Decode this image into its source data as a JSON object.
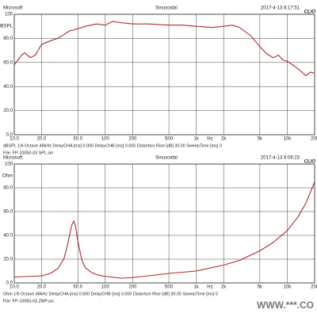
{
  "chart_data": [
    {
      "type": "line",
      "header": {
        "left": "Microsoft",
        "center": "Sinusoidal",
        "right": "2017-4-13 8:17:51",
        "brand": "CLIO"
      },
      "y_unit": "dBSPL",
      "x_unit": "Hz",
      "log_x": true,
      "grid": true,
      "color": "#b3282d",
      "xlim": [
        10,
        20000
      ],
      "xticks": [
        {
          "value": 10,
          "label": "10.0"
        },
        {
          "value": 20,
          "label": "20.0"
        },
        {
          "value": 50,
          "label": "50.0"
        },
        100,
        200,
        500,
        {
          "value": 1000,
          "label": "1k"
        },
        {
          "value": 2000,
          "label": "2k"
        },
        {
          "value": 5000,
          "label": "5k"
        },
        {
          "value": 10000,
          "label": "10k"
        },
        {
          "value": 20000,
          "label": "20k"
        }
      ],
      "ylim": [
        0,
        100
      ],
      "yticks": [
        {
          "value": 0,
          "label": "0.0"
        },
        {
          "value": 20,
          "label": "20.0"
        },
        {
          "value": 40,
          "label": "40.0"
        },
        {
          "value": 60,
          "label": "60.0"
        },
        {
          "value": 80,
          "label": "80.0"
        },
        100
      ],
      "x": [
        10,
        12,
        13,
        15,
        17,
        20,
        25,
        30,
        35,
        40,
        50,
        60,
        70,
        80,
        100,
        120,
        150,
        200,
        300,
        500,
        700,
        1000,
        1500,
        2000,
        2500,
        3000,
        4000,
        5000,
        6000,
        7000,
        8000,
        9000,
        10000,
        12000,
        14000,
        16000,
        18000,
        20000
      ],
      "values": [
        58,
        66,
        68,
        64,
        66,
        75,
        78,
        80,
        83,
        86,
        88,
        90,
        91,
        92,
        91,
        94,
        93,
        92,
        92,
        91,
        91,
        90,
        89,
        90,
        91,
        89,
        82,
        73,
        67,
        64,
        66,
        62,
        61,
        57,
        53,
        49,
        52,
        51
      ],
      "footer": "dBSPL   1/6 Octave   48kHz   DelayCHA [ms] 0.000   DelayCHB [ms] 0.000   Distortion Rise [dB] 30.00   SweepTime [ms] 0",
      "file": "File: FP-10050-03 SPL.sin"
    },
    {
      "type": "line",
      "header": {
        "left": "Microsoft",
        "center": "Sinusoidal",
        "right": "2017-4-13 8:06:23",
        "brand": "CLIO"
      },
      "y_unit": "Ohm",
      "x_unit": "Hz",
      "log_x": true,
      "grid": true,
      "color": "#b3282d",
      "xlim": [
        10,
        20000
      ],
      "xticks": [
        {
          "value": 10,
          "label": "10.0"
        },
        {
          "value": 20,
          "label": "20.0"
        },
        {
          "value": 50,
          "label": "50.0"
        },
        100,
        200,
        500,
        {
          "value": 1000,
          "label": "1k"
        },
        {
          "value": 2000,
          "label": "2k"
        },
        {
          "value": 5000,
          "label": "5k"
        },
        {
          "value": 10000,
          "label": "10k"
        },
        {
          "value": 20000,
          "label": "20k"
        }
      ],
      "ylim": [
        0,
        100
      ],
      "yticks": [
        {
          "value": 0,
          "label": "0.0"
        },
        {
          "value": 20,
          "label": "20.0"
        },
        {
          "value": 40,
          "label": "40.0"
        },
        {
          "value": 60,
          "label": "60.0"
        },
        {
          "value": 80,
          "label": "80.0"
        },
        100
      ],
      "x": [
        10,
        15,
        20,
        25,
        30,
        35,
        38,
        41,
        43,
        45,
        47,
        50,
        55,
        60,
        70,
        80,
        100,
        150,
        200,
        300,
        500,
        1000,
        2000,
        3000,
        5000,
        7000,
        10000,
        13000,
        16000,
        20000
      ],
      "values": [
        5,
        5.5,
        6,
        8,
        12,
        20,
        30,
        42,
        49,
        52,
        48,
        35,
        20,
        13,
        9,
        7,
        5.5,
        4,
        4.5,
        6,
        8,
        10,
        15,
        19,
        27,
        34,
        44,
        55,
        67,
        85
      ],
      "footer": "Ohm   1/6 Octave   48kHz   DelayCHA [ms] 0.000   DelayCHB [ms] 0.000   Distortion Rise [dB] 30.00   SweepTime [ms] 0",
      "file": "File: FP-10050-03 ZMP.sin"
    }
  ],
  "watermark": "WWW.***.CO"
}
